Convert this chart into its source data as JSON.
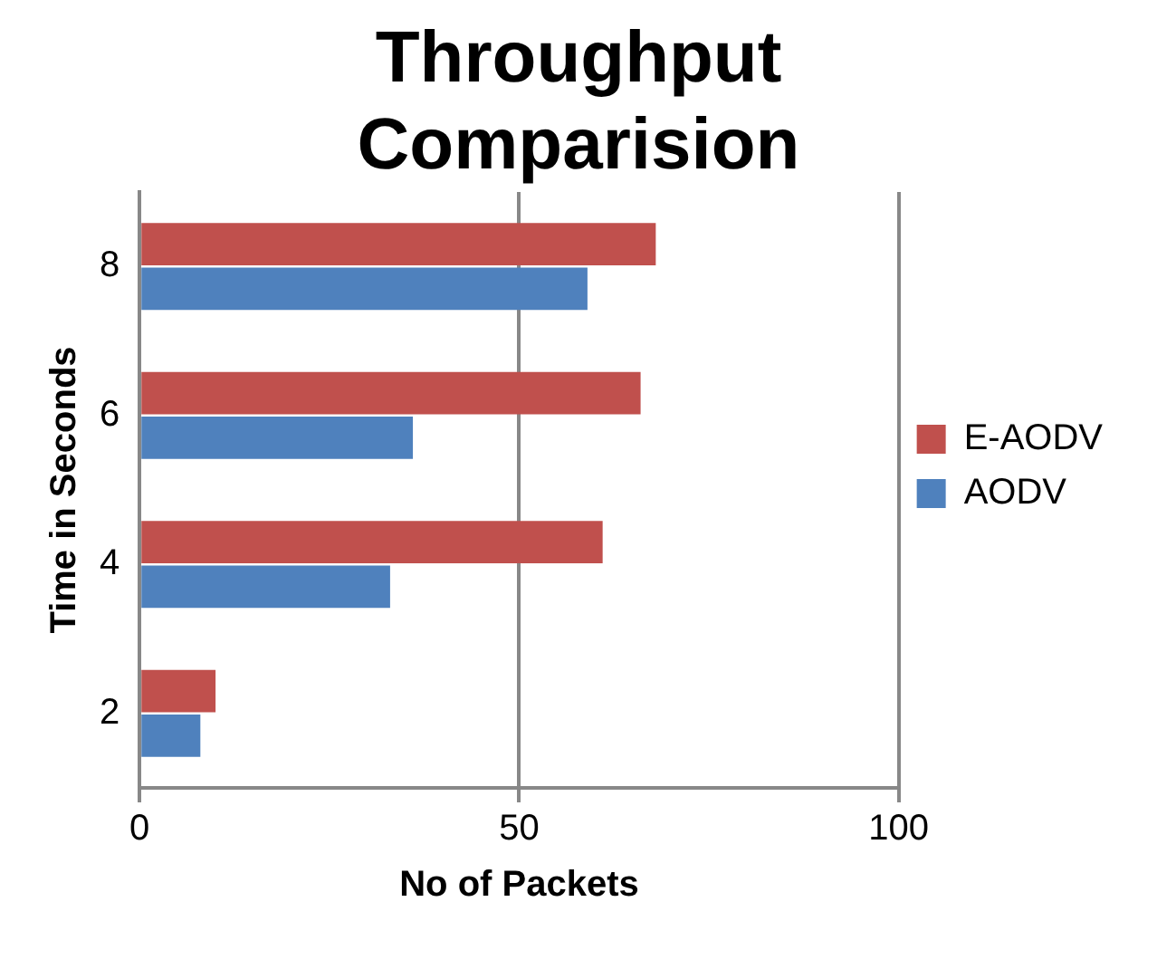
{
  "chart_data": {
    "type": "bar",
    "orientation": "horizontal",
    "title": "Throughput Comparision",
    "xlabel": "No of Packets",
    "ylabel": "Time in Seconds",
    "categories": [
      "8",
      "6",
      "4",
      "2"
    ],
    "series": [
      {
        "name": "E-AODV",
        "color": "#c0504d",
        "values": [
          68,
          66,
          61,
          10
        ]
      },
      {
        "name": "AODV",
        "color": "#4f81bd",
        "values": [
          59,
          36,
          33,
          8
        ]
      }
    ],
    "xlim": [
      0,
      100
    ],
    "xticks": [
      0,
      50,
      100
    ],
    "grid": "x",
    "legend": "right"
  }
}
